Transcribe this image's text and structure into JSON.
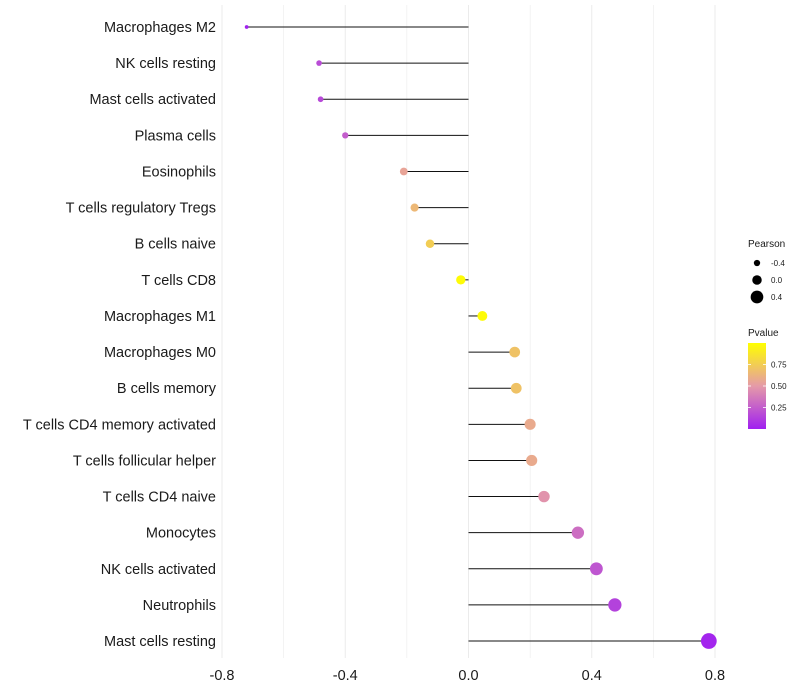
{
  "chart_data": {
    "type": "lollipop",
    "xlim": [
      -0.8,
      0.8
    ],
    "x_ticks": [
      -0.8,
      -0.4,
      0.0,
      0.4,
      0.8
    ],
    "x_tick_labels": [
      "-0.8",
      "-0.4",
      "0.0",
      "0.4",
      "0.8"
    ],
    "categories": [
      "Macrophages M2",
      "NK cells resting",
      "Mast cells activated",
      "Plasma cells",
      "Eosinophils",
      "T cells regulatory  Tregs",
      "B cells naive",
      "T cells CD8",
      "Macrophages M1",
      "Macrophages M0",
      "B cells memory",
      "T cells CD4 memory activated",
      "T cells follicular helper",
      "T cells CD4 naive",
      "Monocytes",
      "NK cells activated",
      "Neutrophils",
      "Mast cells resting"
    ],
    "pearson": [
      -0.72,
      -0.485,
      -0.48,
      -0.4,
      -0.21,
      -0.175,
      -0.125,
      -0.025,
      0.045,
      0.15,
      0.155,
      0.2,
      0.205,
      0.245,
      0.355,
      0.415,
      0.475,
      0.78
    ],
    "pvalue": [
      0.005,
      0.18,
      0.17,
      0.25,
      0.55,
      0.65,
      0.75,
      0.98,
      0.98,
      0.7,
      0.7,
      0.58,
      0.58,
      0.47,
      0.32,
      0.22,
      0.14,
      0.02
    ],
    "legend": {
      "size_title": "Pearson",
      "size_labels": [
        "-0.4",
        "0.0",
        "0.4"
      ],
      "size_values": [
        -0.4,
        0.0,
        0.4
      ],
      "color_title": "Pvalue",
      "color_labels": [
        "0.75",
        "0.50",
        "0.25"
      ],
      "color_values": [
        0.75,
        0.5,
        0.25
      ],
      "color_range": [
        0.0,
        1.0
      ],
      "color_low": "#a020f0",
      "color_mid": "#e59aa8",
      "color_high": "#ffff00",
      "position": "right"
    },
    "colors": {
      "stem": "#111111",
      "grid": "#ebebeb",
      "text": "#1a1a1a"
    }
  }
}
